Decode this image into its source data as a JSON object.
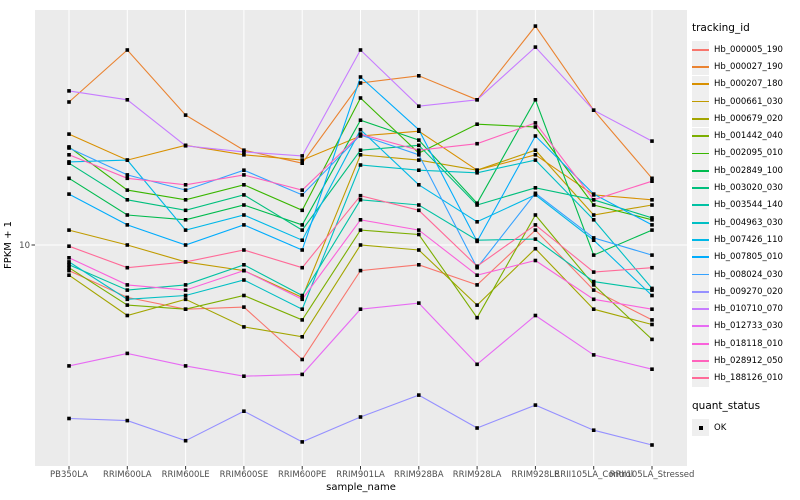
{
  "figure": {
    "background": "#ffffff",
    "panel_background": "#ebebeb",
    "gridline_color": "#ffffff",
    "axis_text_color": "#4d4d4d",
    "tick_color": "#333333",
    "marker_color": "#000000",
    "legend_key_background": "#efefef"
  },
  "chart_data": {
    "type": "line",
    "title": "",
    "xlabel": "sample_name",
    "ylabel": "FPKM + 1",
    "y_scale": "log10",
    "y_ticks": [
      10
    ],
    "y_tick_labels": [
      "10"
    ],
    "ylim": [
      1.6,
      68
    ],
    "grid": true,
    "legend_position": "right",
    "legend_title": "tracking_id",
    "quant_legend_title": "quant_status",
    "quant_legend_items": [
      "OK"
    ],
    "marker": "square",
    "categories": [
      "PB350LA",
      "RRIM600LA",
      "RRIM600LE",
      "RRIM600SE",
      "RRIM600PE",
      "RRIM901LA",
      "RRIM928BA",
      "RRIM928LA",
      "RRIM928LE",
      "RRII105LA_Control",
      "RRII105LA_Stressed"
    ],
    "series": [
      {
        "name": "Hb_000005_190",
        "color": "#F8766D",
        "values": [
          8.1,
          6.5,
          5.9,
          6.0,
          3.9,
          8.1,
          8.5,
          7.2,
          11.3,
          6.9,
          5.4
        ]
      },
      {
        "name": "Hb_000027_190",
        "color": "#EA8331",
        "values": [
          32.4,
          49.7,
          29.1,
          21.8,
          19.6,
          37.9,
          40.2,
          33.0,
          60.5,
          30.3,
          17.3
        ]
      },
      {
        "name": "Hb_000207_180",
        "color": "#D89000",
        "values": [
          24.9,
          20.1,
          22.7,
          21.0,
          20.1,
          24.5,
          25.5,
          18.5,
          21.0,
          15.1,
          14.5
        ]
      },
      {
        "name": "Hb_000661_030",
        "color": "#C09B00",
        "values": [
          11.3,
          10.0,
          8.7,
          8.1,
          6.5,
          21.0,
          20.1,
          18.5,
          21.8,
          12.8,
          13.9
        ]
      },
      {
        "name": "Hb_000679_020",
        "color": "#A3A500",
        "values": [
          7.8,
          5.6,
          6.4,
          5.1,
          4.7,
          10.0,
          9.6,
          6.1,
          9.7,
          5.9,
          5.2
        ]
      },
      {
        "name": "Hb_001442_040",
        "color": "#7CAE00",
        "values": [
          8.3,
          6.1,
          5.9,
          6.6,
          5.4,
          11.3,
          10.9,
          5.5,
          12.8,
          7.2,
          4.6
        ]
      },
      {
        "name": "Hb_002095_010",
        "color": "#39B600",
        "values": [
          22.4,
          15.7,
          14.5,
          16.4,
          13.3,
          33.5,
          21.3,
          27.0,
          26.4,
          13.9,
          12.3
        ]
      },
      {
        "name": "Hb_002849_100",
        "color": "#00BB4E",
        "values": [
          17.3,
          12.8,
          12.3,
          13.9,
          11.8,
          27.9,
          23.7,
          14.1,
          33.0,
          9.2,
          11.3
        ]
      },
      {
        "name": "Hb_003020_030",
        "color": "#00BF7D",
        "values": [
          19.6,
          14.5,
          13.3,
          15.1,
          11.3,
          21.8,
          22.7,
          13.9,
          16.0,
          14.5,
          12.5
        ]
      },
      {
        "name": "Hb_003544_140",
        "color": "#00C1A3",
        "values": [
          8.5,
          6.9,
          7.2,
          8.5,
          6.6,
          14.5,
          13.9,
          10.4,
          10.5,
          7.4,
          6.9
        ]
      },
      {
        "name": "Hb_004963_030",
        "color": "#00BFC4",
        "values": [
          8.7,
          6.4,
          6.6,
          7.5,
          5.9,
          19.3,
          18.5,
          18.1,
          20.1,
          12.3,
          7.0
        ]
      },
      {
        "name": "Hb_007426_110",
        "color": "#00B8E7",
        "values": [
          19.8,
          20.1,
          11.3,
          12.8,
          10.4,
          25.8,
          16.4,
          12.1,
          15.1,
          10.4,
          6.6
        ]
      },
      {
        "name": "Hb_007805_010",
        "color": "#00ACFC",
        "values": [
          15.2,
          11.8,
          10.0,
          11.8,
          9.6,
          39.8,
          25.8,
          10.3,
          24.5,
          15.2,
          11.8
        ]
      },
      {
        "name": "Hb_008024_030",
        "color": "#35A2FF",
        "values": [
          22.2,
          17.8,
          15.7,
          18.5,
          15.1,
          24.7,
          21.0,
          8.3,
          15.3,
          10.6,
          9.2
        ]
      },
      {
        "name": "Hb_009270_020",
        "color": "#9590FF",
        "values": [
          2.4,
          2.36,
          2.0,
          2.55,
          1.98,
          2.43,
          2.91,
          2.22,
          2.68,
          2.18,
          1.93
        ]
      },
      {
        "name": "Hb_010710_070",
        "color": "#C77CFF",
        "values": [
          35.5,
          33.0,
          22.6,
          21.5,
          20.8,
          49.7,
          31.3,
          33.0,
          50.9,
          30.3,
          23.5
        ]
      },
      {
        "name": "Hb_012733_030",
        "color": "#E76BF3",
        "values": [
          3.7,
          4.1,
          3.7,
          3.4,
          3.45,
          5.9,
          6.2,
          3.75,
          5.6,
          4.05,
          3.6
        ]
      },
      {
        "name": "Hb_018118_010",
        "color": "#FA62DB",
        "values": [
          9.0,
          7.2,
          6.9,
          8.1,
          6.4,
          12.3,
          11.3,
          7.8,
          8.8,
          6.4,
          5.9
        ]
      },
      {
        "name": "Hb_028912_050",
        "color": "#FF62BC",
        "values": [
          21.0,
          17.3,
          16.4,
          17.8,
          15.7,
          24.9,
          21.8,
          23.0,
          27.3,
          14.5,
          16.9
        ]
      },
      {
        "name": "Hb_188126_010",
        "color": "#FF6A98",
        "values": [
          9.9,
          8.3,
          8.7,
          9.6,
          8.3,
          15.0,
          13.3,
          8.4,
          11.8,
          8.0,
          8.3
        ]
      }
    ]
  }
}
